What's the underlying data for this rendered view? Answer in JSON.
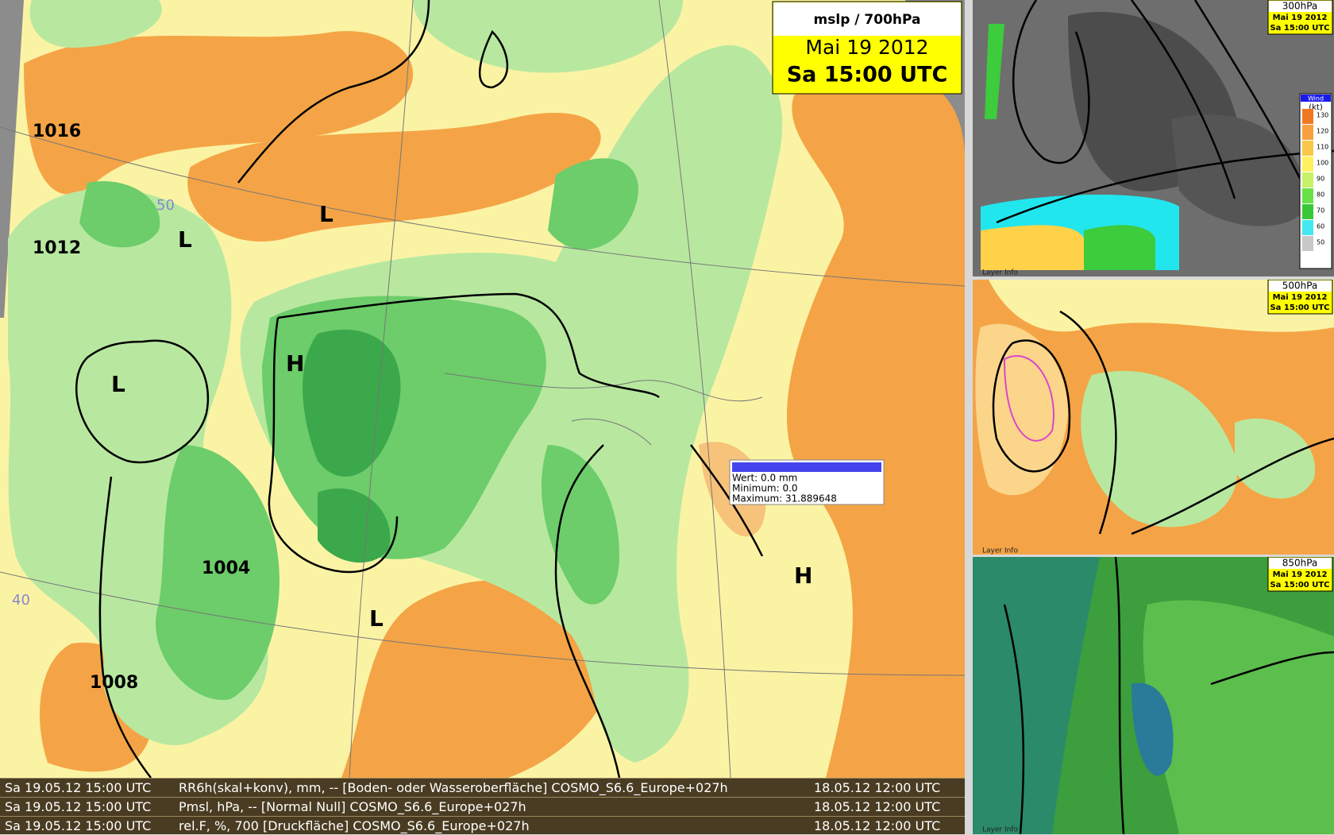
{
  "title_box": {
    "title": "mslp / 700hPa",
    "date": "Mai 19 2012",
    "time": "Sa 15:00 UTC"
  },
  "map_labels": [
    "1016",
    "1012",
    "1008",
    "1004",
    "L",
    "L",
    "L",
    "H",
    "L",
    "H",
    "50",
    "40"
  ],
  "info_popup": {
    "value": "Wert: 0.0 mm",
    "minimum": "Minimum: 0.0",
    "maximum": "Maximum: 31.889648"
  },
  "status_rows": [
    [
      "Sa 19.05.12 15:00 UTC",
      "RR6h(skal+konv), mm, -- [Boden- oder Wasseroberfläche] COSMO_S6.6_Europe+027h",
      "18.05.12 12:00 UTC"
    ],
    [
      "Sa 19.05.12 15:00 UTC",
      "Pmsl, hPa, -- [Normal Null] COSMO_S6.6_Europe+027h",
      "18.05.12 12:00 UTC"
    ],
    [
      "Sa 19.05.12 15:00 UTC",
      "rel.F, %, 700 [Druckfläche] COSMO_S6.6_Europe+027h",
      "18.05.12 12:00 UTC"
    ]
  ],
  "panels": [
    {
      "level": "300hPa",
      "date": "Mai 19 2012",
      "time": "Sa 15:00 UTC",
      "layer_info": "Layer Info"
    },
    {
      "level": "500hPa",
      "date": "Mai 19 2012",
      "time": "Sa 15:00 UTC",
      "layer_info": "Layer Info"
    },
    {
      "level": "850hPa",
      "date": "Mai 19 2012",
      "time": "Sa 15:00 UTC",
      "layer_info": "Layer Info"
    }
  ],
  "wind_legend": {
    "title": "Wind",
    "unit": "(kt)",
    "levels": [
      "130",
      "120",
      "110",
      "100",
      "90",
      "80",
      "70",
      "60",
      "50"
    ]
  }
}
